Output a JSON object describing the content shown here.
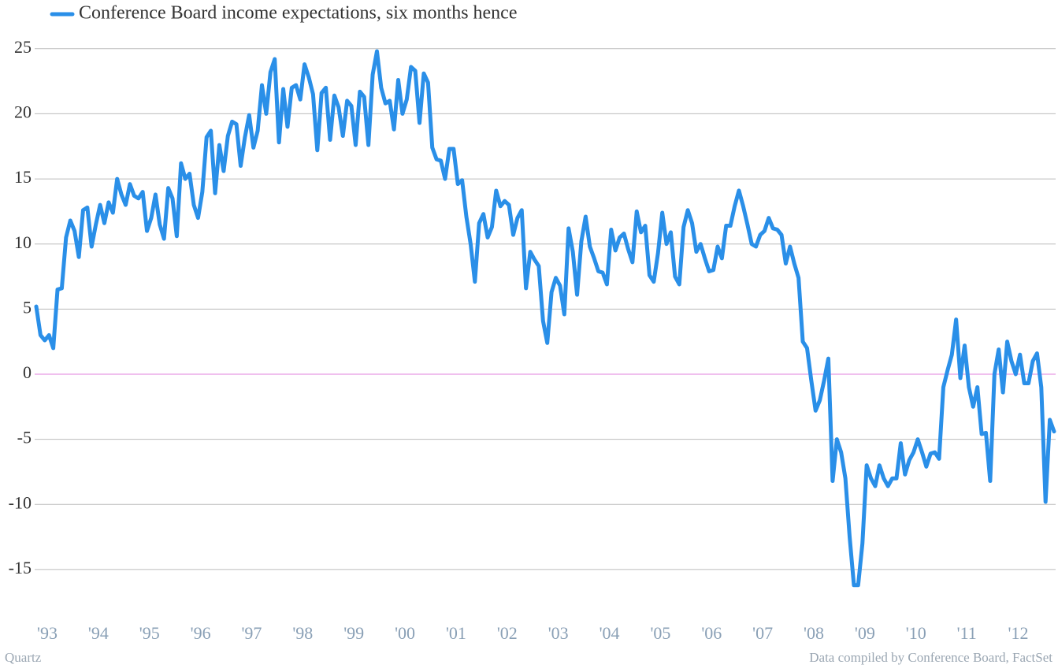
{
  "chart_data": {
    "type": "line",
    "credit": "Quartz",
    "source": "Data compiled by Conference Board, FactSet",
    "categories": [
      "'93",
      null,
      null,
      null,
      null,
      null,
      null,
      null,
      null,
      null,
      null,
      null,
      "'94",
      null,
      null,
      null,
      null,
      null,
      null,
      null,
      null,
      null,
      null,
      null,
      "'95",
      null,
      null,
      null,
      null,
      null,
      null,
      null,
      null,
      null,
      null,
      null,
      "'96",
      null,
      null,
      null,
      null,
      null,
      null,
      null,
      null,
      null,
      null,
      null,
      "'97",
      null,
      null,
      null,
      null,
      null,
      null,
      null,
      null,
      null,
      null,
      null,
      "'98",
      null,
      null,
      null,
      null,
      null,
      null,
      null,
      null,
      null,
      null,
      null,
      "'99",
      null,
      null,
      null,
      null,
      null,
      null,
      null,
      null,
      null,
      null,
      null,
      "'00",
      null,
      null,
      null,
      null,
      null,
      null,
      null,
      null,
      null,
      null,
      null,
      "'01",
      null,
      null,
      null,
      null,
      null,
      null,
      null,
      null,
      null,
      null,
      null,
      "'02",
      null,
      null,
      null,
      null,
      null,
      null,
      null,
      null,
      null,
      null,
      null,
      "'03",
      null,
      null,
      null,
      null,
      null,
      null,
      null,
      null,
      null,
      null,
      null,
      "'04",
      null,
      null,
      null,
      null,
      null,
      null,
      null,
      null,
      null,
      null,
      null,
      "'05",
      null,
      null,
      null,
      null,
      null,
      null,
      null,
      null,
      null,
      null,
      null,
      "'06",
      null,
      null,
      null,
      null,
      null,
      null,
      null,
      null,
      null,
      null,
      null,
      "'07",
      null,
      null,
      null,
      null,
      null,
      null,
      null,
      null,
      null,
      null,
      null,
      "'08",
      null,
      null,
      null,
      null,
      null,
      null,
      null,
      null,
      null,
      null,
      null,
      "'09",
      null,
      null,
      null,
      null,
      null,
      null,
      null,
      null,
      null,
      null,
      null,
      "'10",
      null,
      null,
      null,
      null,
      null,
      null,
      null,
      null,
      null,
      null,
      null,
      "'11",
      null,
      null,
      null,
      null,
      null,
      null,
      null,
      null,
      null,
      null,
      null,
      "'12",
      null,
      null,
      null,
      null,
      null,
      null,
      null,
      null,
      null,
      null,
      null
    ],
    "series": [
      {
        "name": "Conference Board income expectations, six months hence",
        "color": "#2a8fe8",
        "values": [
          5.2,
          3,
          2.6,
          3,
          2,
          6.5,
          6.6,
          10.5,
          11.8,
          11,
          9,
          12.6,
          12.8,
          9.8,
          11.5,
          13,
          11.6,
          13.2,
          12.4,
          15,
          13.8,
          13,
          14.6,
          13.7,
          13.5,
          14,
          11,
          12,
          13.8,
          11.5,
          10.4,
          14.3,
          13.5,
          10.6,
          16.2,
          15,
          15.4,
          13,
          12,
          14,
          18.2,
          18.7,
          13.9,
          17.6,
          15.6,
          18.3,
          19.4,
          19.2,
          16,
          18.2,
          19.9,
          17.4,
          18.7,
          22.2,
          20,
          23.2,
          24.2,
          17.8,
          21.9,
          19,
          22,
          22.2,
          21.1,
          23.8,
          22.8,
          21.5,
          17.2,
          21.6,
          22,
          18,
          21.4,
          20.5,
          18.3,
          21,
          20.6,
          17.6,
          21.7,
          21.3,
          17.6,
          23,
          24.8,
          22,
          20.8,
          21,
          18.8,
          22.6,
          20,
          21.1,
          23.6,
          23.3,
          19.3,
          23.1,
          22.4,
          17.4,
          16.5,
          16.4,
          15,
          17.3,
          17.3,
          14.6,
          14.9,
          12.1,
          10,
          7.1,
          11.6,
          12.3,
          10.5,
          11.3,
          14.1,
          12.9,
          13.3,
          13,
          10.7,
          12,
          12.6,
          6.6,
          9.4,
          8.8,
          8.3,
          4.1,
          2.4,
          6.3,
          7.4,
          6.8,
          4.6,
          11.2,
          9.4,
          6.1,
          10.2,
          12.1,
          9.8,
          8.9,
          7.9,
          7.8,
          6.9,
          11.1,
          9.5,
          10.5,
          10.8,
          9.6,
          8.6,
          12.5,
          10.9,
          11.4,
          7.6,
          7.1,
          9.3,
          12.4,
          10,
          10.9,
          7.5,
          6.9,
          11.3,
          12.6,
          11.6,
          9.4,
          10,
          8.9,
          7.9,
          8,
          9.8,
          8.9,
          11.4,
          11.4,
          12.9,
          14.1,
          12.9,
          11.5,
          10,
          9.8,
          10.7,
          11,
          12,
          11.2,
          11.1,
          10.7,
          8.5,
          9.8,
          8.5,
          7.4,
          2.5,
          2,
          -0.5,
          -2.8,
          -2,
          -0.5,
          1.2,
          -8.2,
          -5,
          -6,
          -8,
          -12.5,
          -16.2,
          -16.2,
          -13,
          -7,
          -8,
          -8.6,
          -7,
          -8,
          -8.6,
          -8,
          -8,
          -5.3,
          -7.7,
          -6.6,
          -6,
          -5,
          -6,
          -7.1,
          -6.1,
          -6,
          -6.5,
          -1,
          0.3,
          1.5,
          4.2,
          -0.3,
          2.2,
          -1,
          -2.5,
          -1,
          -4.6,
          -4.5,
          -8.2,
          0,
          1.9,
          -1.4,
          2.5,
          1,
          0,
          1.5,
          -0.7,
          -0.7,
          1,
          1.6,
          -1,
          -9.8,
          -3.5,
          -4.4
        ]
      }
    ],
    "ylim": [
      -19,
      26.5
    ],
    "yticks": [
      -15,
      -10,
      -5,
      0,
      5,
      10,
      15,
      20,
      25
    ],
    "grid": true,
    "grid_color": "#bbbbbb",
    "zero_line_color": "#e080dc",
    "legend": "top-left"
  }
}
